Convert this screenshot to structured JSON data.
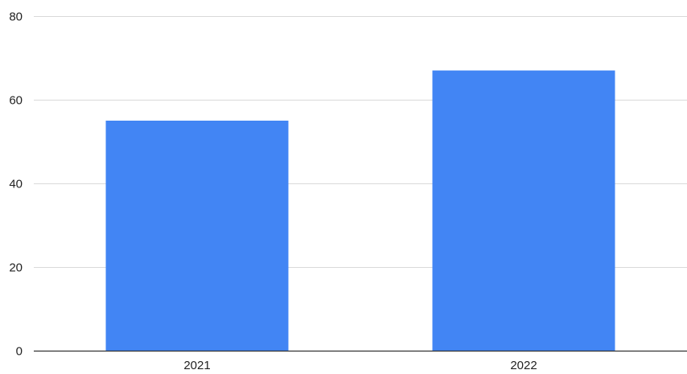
{
  "chart_data": {
    "type": "bar",
    "title": "",
    "xlabel": "",
    "ylabel": "",
    "categories": [
      "2021",
      "2022"
    ],
    "series": [
      {
        "values": [
          55,
          67
        ]
      }
    ],
    "ylim": [
      0,
      80
    ],
    "yticks": [
      0,
      20,
      40,
      60,
      80
    ],
    "grid": true,
    "legend": "none",
    "colors": {
      "bar": "#4285f4",
      "grid": "#d9d9d9",
      "axis": "#333333",
      "text": "#222222"
    }
  }
}
